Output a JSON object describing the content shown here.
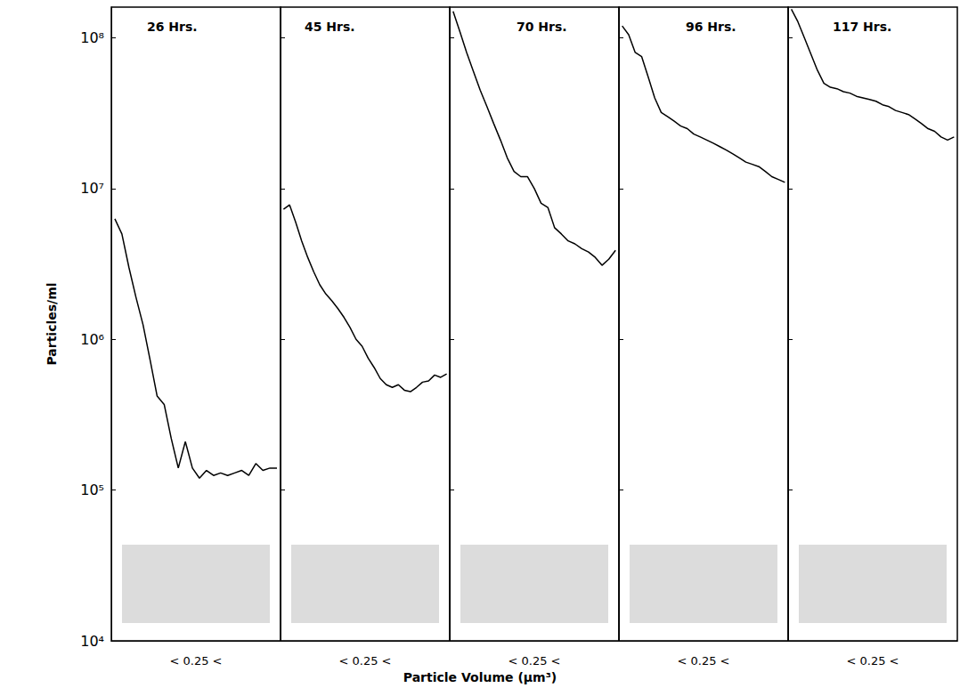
{
  "chart_data": {
    "type": "line",
    "log": "y",
    "ylabel": "Particles/ml",
    "xlabel": "Particle Volume (µm³)",
    "ylim": [
      10000,
      160000000
    ],
    "yticks": [
      {
        "value": 10000,
        "label": "10⁴"
      },
      {
        "value": 100000,
        "label": "10⁵"
      },
      {
        "value": 1000000,
        "label": "10⁶"
      },
      {
        "value": 10000000,
        "label": "10⁷"
      },
      {
        "value": 100000000,
        "label": "10⁸"
      }
    ],
    "tick_labels": "y",
    "grid": false,
    "marker": "circle",
    "color": "#000000",
    "panels": [
      {
        "title": "26 Hrs.",
        "annotation": "< 0.25 <",
        "values": [
          6300000,
          5000000,
          3000000,
          1900000,
          1250000,
          730000,
          420000,
          370000,
          220000,
          140000,
          210000,
          140000,
          120000,
          135000,
          125000,
          130000,
          125000,
          130000,
          135000,
          125000,
          150000,
          135000,
          140000,
          140000
        ]
      },
      {
        "title": "45 Hrs.",
        "annotation": "< 0.25 <",
        "values": [
          7300000,
          7800000,
          6000000,
          4500000,
          3500000,
          2800000,
          2300000,
          2000000,
          1800000,
          1600000,
          1400000,
          1200000,
          1000000,
          900000,
          750000,
          650000,
          550000,
          500000,
          480000,
          500000,
          460000,
          450000,
          480000,
          520000,
          530000,
          580000,
          560000,
          590000
        ]
      },
      {
        "title": "70 Hrs.",
        "annotation": "< 0.25 <",
        "values": [
          150000000,
          110000000,
          80000000,
          60000000,
          45000000,
          35000000,
          27000000,
          21000000,
          16000000,
          13000000,
          12000000,
          12000000,
          10000000,
          8000000,
          7500000,
          5500000,
          5000000,
          4500000,
          4300000,
          4000000,
          3800000,
          3500000,
          3100000,
          3400000,
          3900000
        ]
      },
      {
        "title": "96 Hrs.",
        "annotation": "< 0.25 <",
        "values": [
          120000000,
          105000000,
          80000000,
          75000000,
          55000000,
          40000000,
          32000000,
          30000000,
          28000000,
          26000000,
          25000000,
          23000000,
          22000000,
          21000000,
          20000000,
          19000000,
          18000000,
          17000000,
          16000000,
          15000000,
          14500000,
          14000000,
          13000000,
          12000000,
          11500000,
          11000000
        ]
      },
      {
        "title": "117 Hrs.",
        "annotation": "< 0.25 <",
        "values": [
          155000000,
          128000000,
          100000000,
          78000000,
          61000000,
          50000000,
          47000000,
          46000000,
          44000000,
          43000000,
          41000000,
          40000000,
          39000000,
          38000000,
          36000000,
          35000000,
          33000000,
          32000000,
          31000000,
          29000000,
          27000000,
          25000000,
          24000000,
          22000000,
          21000000,
          22000000
        ]
      }
    ]
  }
}
